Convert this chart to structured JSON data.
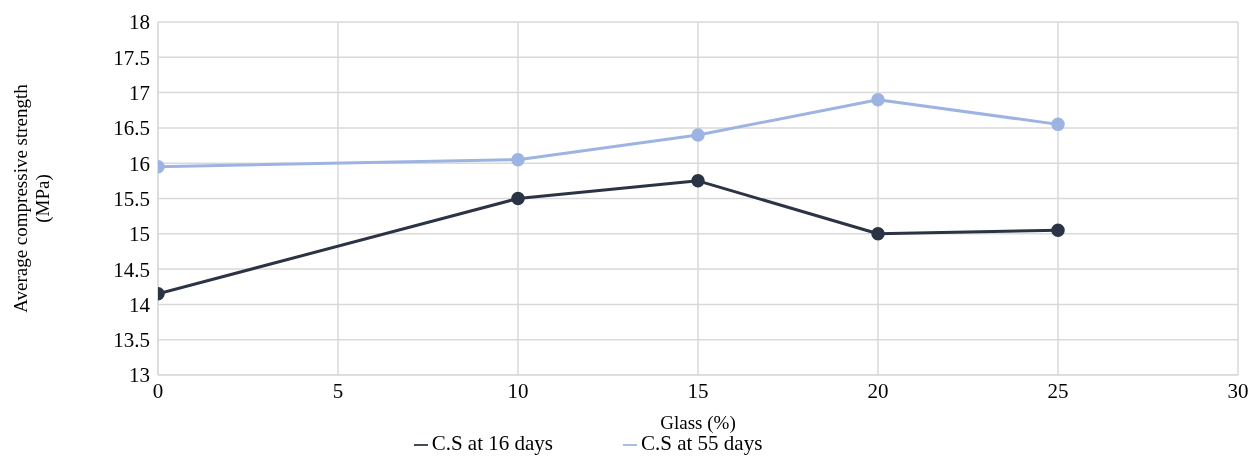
{
  "chart_data": {
    "type": "line",
    "xlabel": "Glass (%)",
    "ylabel": "Average compressive strength (MPa)",
    "x": [
      0,
      10,
      15,
      20,
      25
    ],
    "series": [
      {
        "name": "C.S at 16 days",
        "color": "#2b3444",
        "values": [
          14.15,
          15.5,
          15.75,
          15.0,
          15.05
        ]
      },
      {
        "name": "C.S at 55 days",
        "color": "#9db4e2",
        "values": [
          15.95,
          16.05,
          16.4,
          16.9,
          16.55
        ]
      }
    ],
    "xlim": [
      0,
      30
    ],
    "xticks": [
      0,
      5,
      10,
      15,
      20,
      25,
      30
    ],
    "ylim": [
      13,
      18
    ],
    "yticks": [
      13,
      13.5,
      14,
      14.5,
      15,
      15.5,
      16,
      16.5,
      17,
      17.5,
      18
    ],
    "grid": true,
    "legend": "bottom",
    "marker": "circle",
    "line_style": "solid"
  }
}
